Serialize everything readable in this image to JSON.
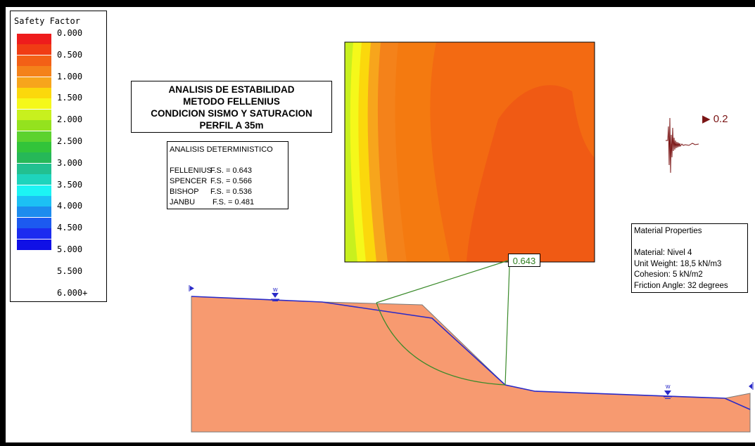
{
  "legend": {
    "title": "Safety Factor",
    "ticks": [
      "0.000",
      "0.500",
      "1.000",
      "1.500",
      "2.000",
      "2.500",
      "3.000",
      "3.500",
      "4.000",
      "4.500",
      "5.000",
      "5.500",
      "6.000+"
    ],
    "colors": [
      "#ee1c1c",
      "#f03c14",
      "#f36016",
      "#f4821a",
      "#f7a51c",
      "#fbd80c",
      "#f5f81a",
      "#c8f01e",
      "#94e21e",
      "#5cd22e",
      "#32c43a",
      "#26b858",
      "#22c090",
      "#1ed4bc",
      "#1cf4f4",
      "#1cc0f4",
      "#1c8cee",
      "#1c5af0",
      "#1c2cf0",
      "#1010e6"
    ]
  },
  "title_box": {
    "lines": [
      "ANALISIS DE ESTABILIDAD",
      "METODO FELLENIUS",
      "CONDICION SISMO Y SATURACION",
      "PERFIL A 35m"
    ]
  },
  "results": {
    "heading": "ANALISIS DETERMINISTICO",
    "rows": [
      {
        "method": "FELLENIUS",
        "fs": "F.S. = 0.643"
      },
      {
        "method": "SPENCER",
        "fs": "F.S. = 0.566"
      },
      {
        "method": "BISHOP",
        "fs": "F.S. = 0.536"
      },
      {
        "method": "JANBU",
        "fs": " F.S. = 0.481"
      }
    ]
  },
  "material": {
    "heading": "Material Properties",
    "name": "Material: Nivel 4",
    "unit_weight": "Unit Weight: 18,5 kN/m3",
    "cohesion": "Cohesion: 5 kN/m2",
    "friction": "Friction Angle: 32 degrees"
  },
  "critical_fs": "0.643",
  "seismic": {
    "value": "▶ 0.2",
    "color": "#7a1414"
  },
  "water_label": "w",
  "colors": {
    "soil": "#f79a70",
    "water_table": "#2a2ac8",
    "slip_surface": "#3a8a2a",
    "seismic": "#7a1414"
  }
}
